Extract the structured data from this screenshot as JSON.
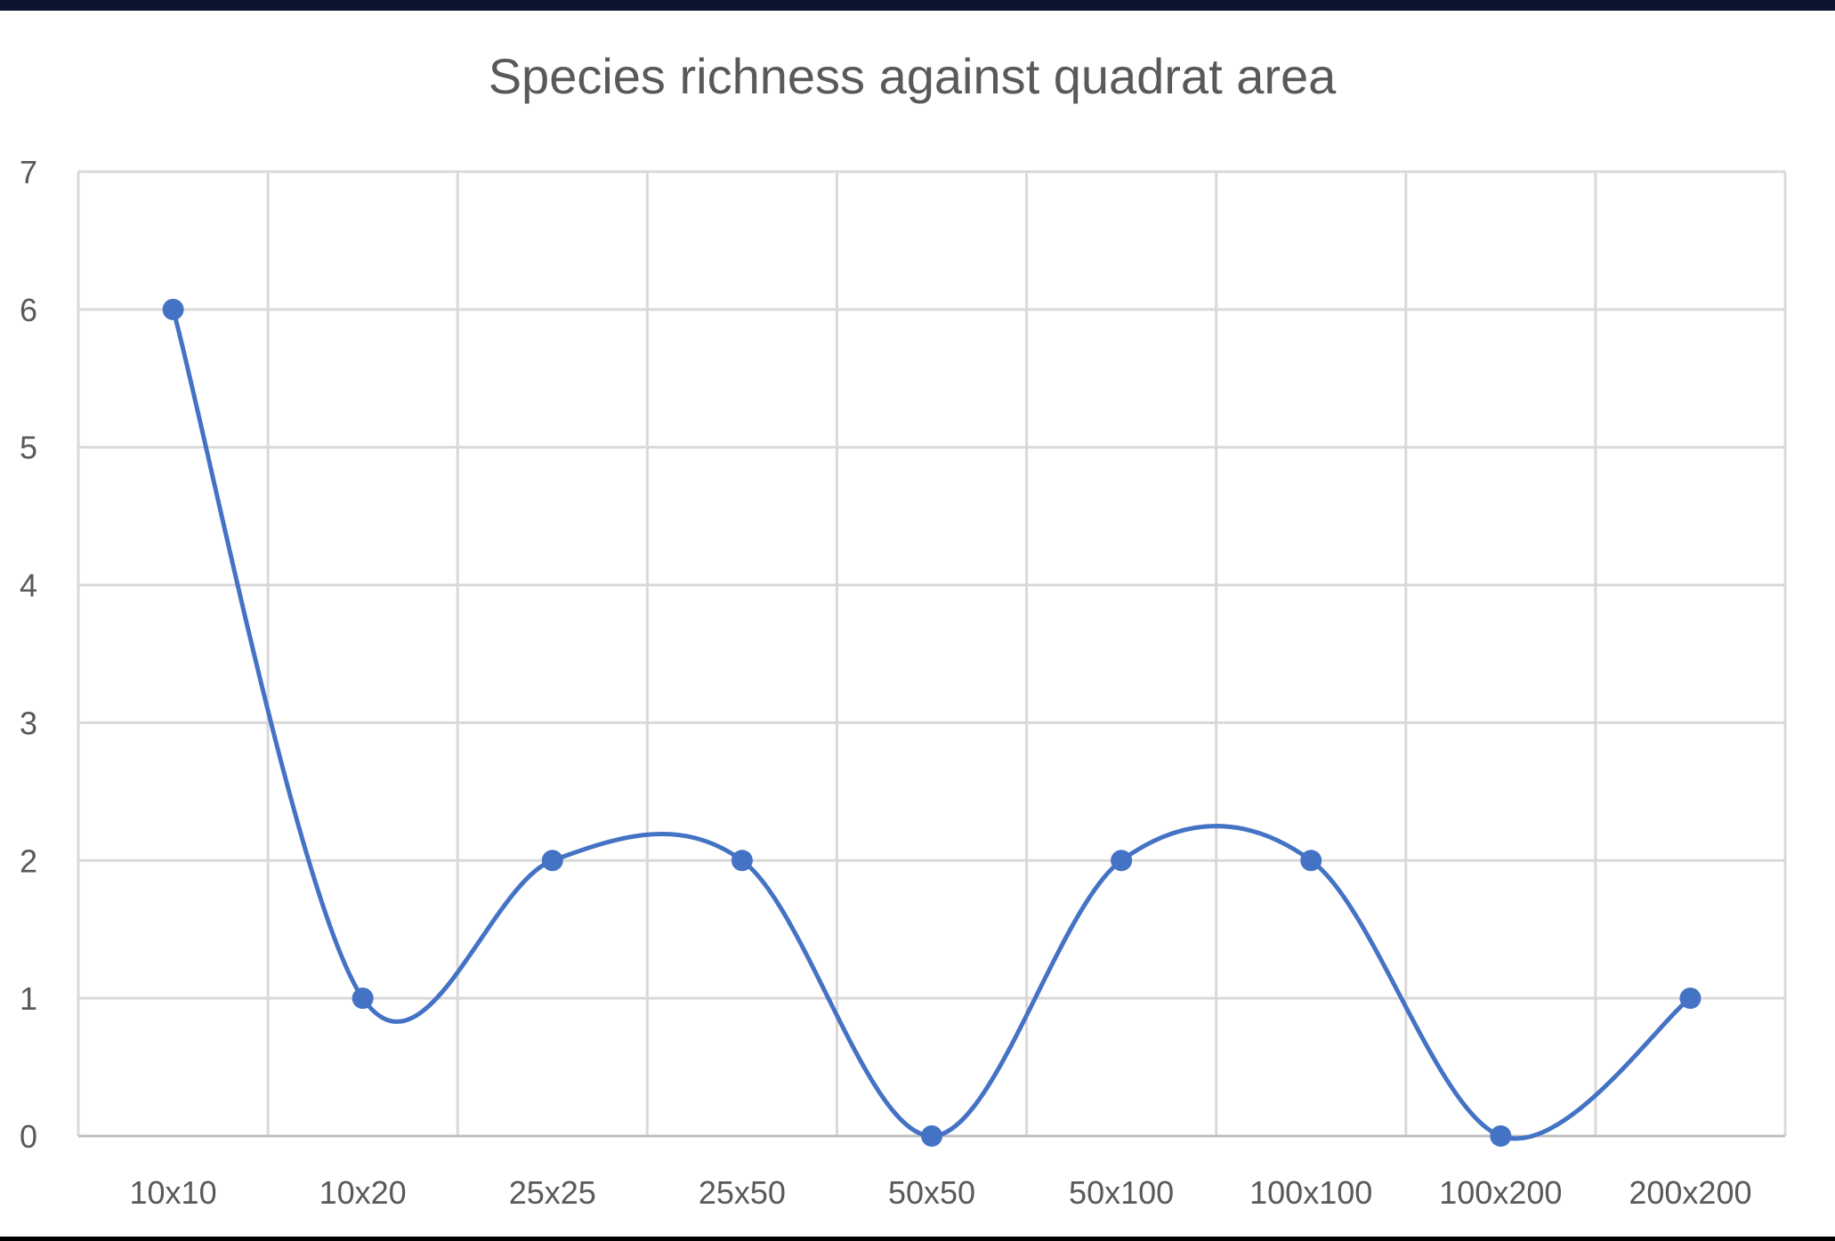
{
  "chart_data": {
    "type": "line",
    "smooth": true,
    "title": "Species richness against quadrat area",
    "xlabel": "",
    "ylabel": "",
    "categories": [
      "10x10",
      "10x20",
      "25x25",
      "25x50",
      "50x50",
      "50x100",
      "100x100",
      "100x200",
      "200x200"
    ],
    "series": [
      {
        "values": [
          6,
          1,
          2,
          2,
          0,
          2,
          2,
          0,
          1
        ]
      }
    ],
    "ylim": [
      0,
      7
    ],
    "yticks": [
      "0",
      "1",
      "2",
      "3",
      "4",
      "5",
      "6",
      "7"
    ],
    "grid": true,
    "markers": true,
    "colors": {
      "line": "#4472C4",
      "grid": "#D9D9D9",
      "text": "#595959"
    }
  }
}
